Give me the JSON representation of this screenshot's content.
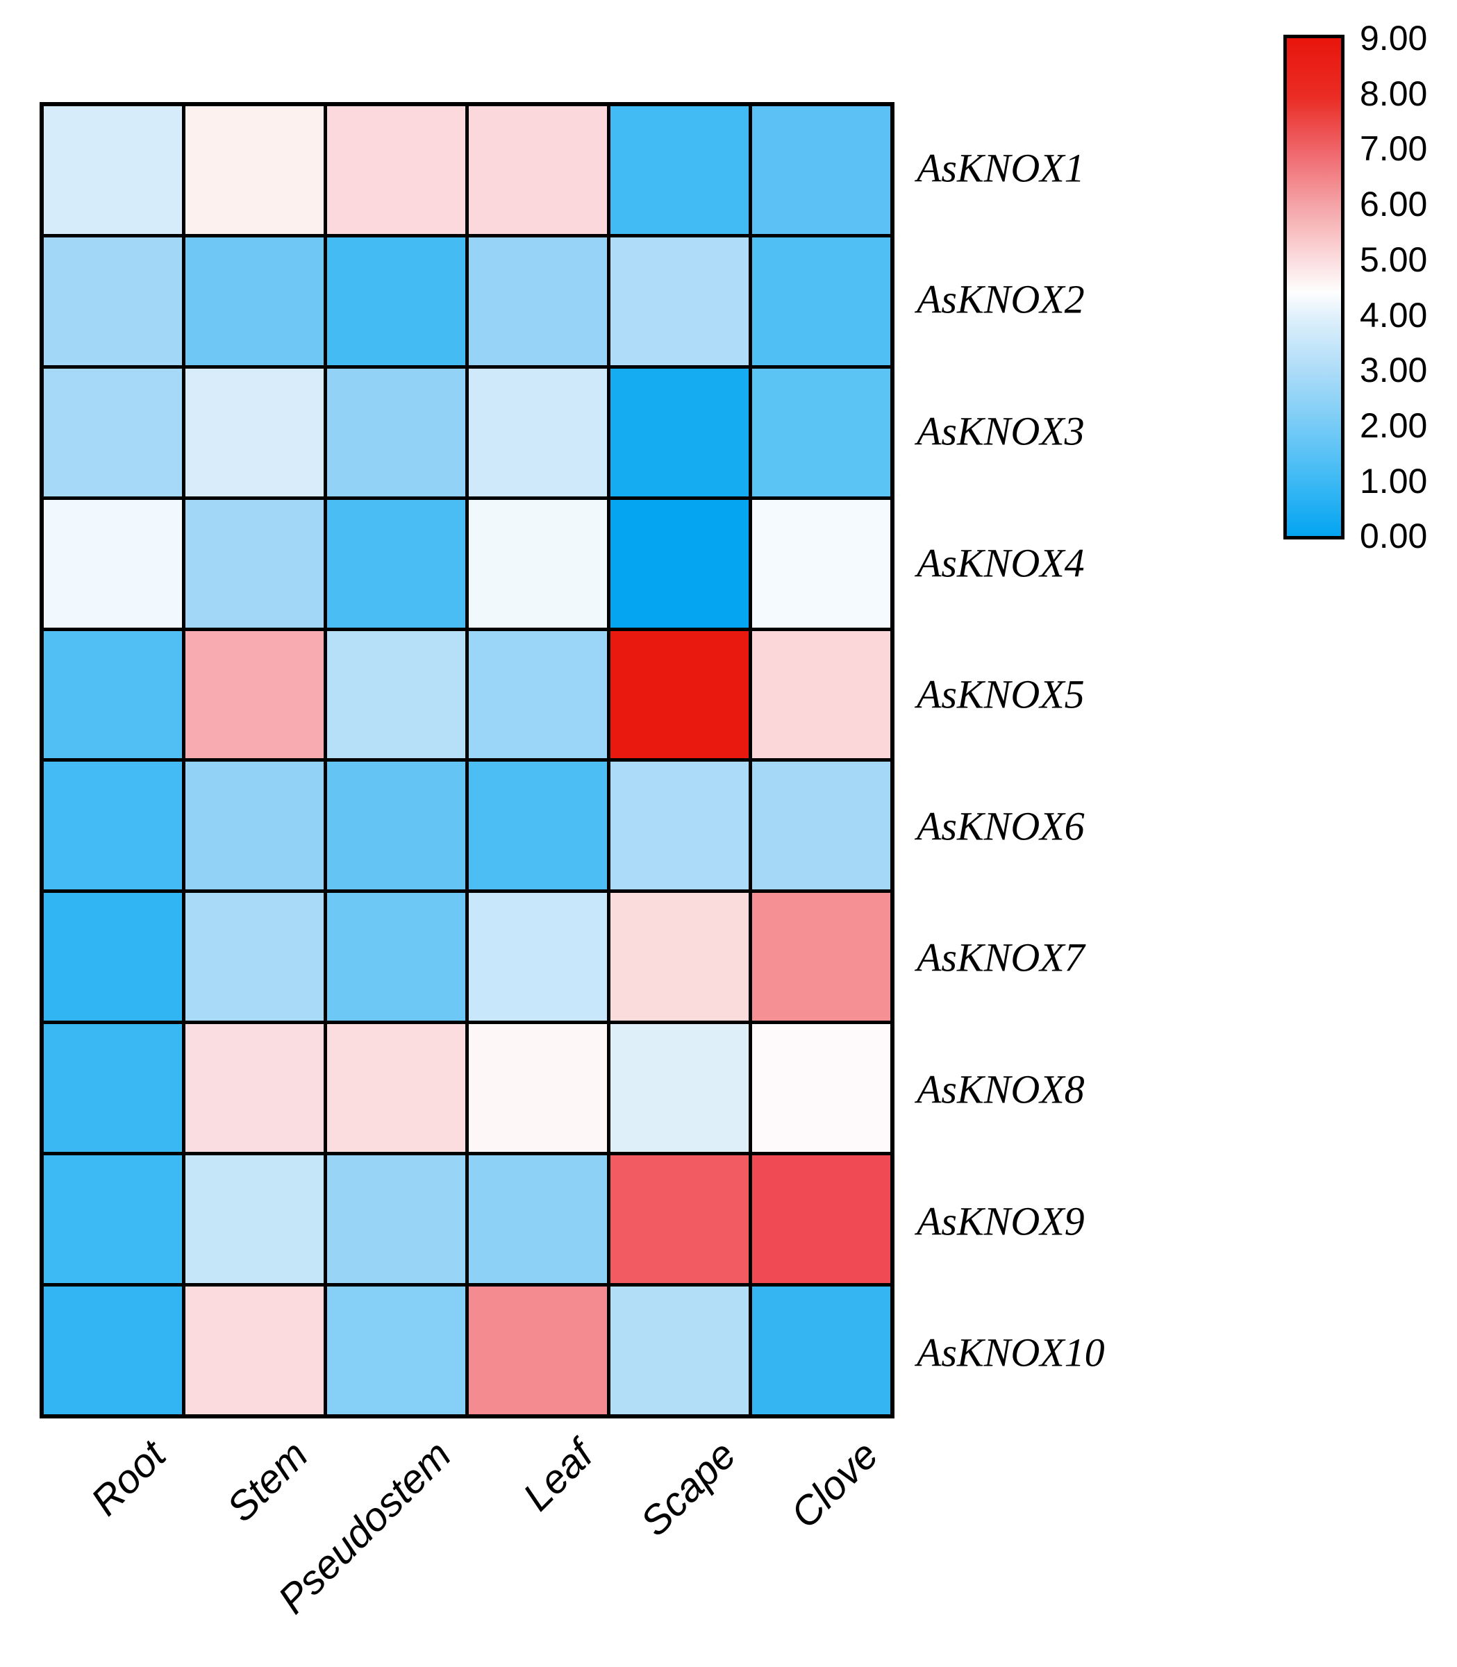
{
  "figure": {
    "background": "#ffffff",
    "border_color": "#000000"
  },
  "chart_data": {
    "type": "heatmap",
    "title": "",
    "xlabel": "",
    "ylabel": "",
    "grid_border": "on",
    "legend_position": "right-colorbar",
    "x_categories": [
      "Root",
      "Stem",
      "Pseudostem",
      "Leaf",
      "Scape",
      "Clove"
    ],
    "y_categories": [
      "AsKNOX1",
      "AsKNOX2",
      "AsKNOX3",
      "AsKNOX4",
      "AsKNOX5",
      "AsKNOX6",
      "AsKNOX7",
      "AsKNOX8",
      "AsKNOX9",
      "AsKNOX10"
    ],
    "series": [
      {
        "name": "AsKNOX1",
        "values": [
          3.8,
          4.7,
          5.2,
          5.2,
          1.1,
          1.6
        ],
        "colors": [
          "#D7ECFA",
          "#FDF1F0",
          "#FBD9DC",
          "#FBD8DB",
          "#42BAF4",
          "#5CC2F5"
        ]
      },
      {
        "name": "AsKNOX2",
        "values": [
          2.8,
          1.9,
          1.2,
          2.6,
          3.1,
          1.3
        ],
        "colors": [
          "#A3D7F7",
          "#6EC7F5",
          "#45BBF4",
          "#96D3F6",
          "#AFDCF8",
          "#4FBFF4"
        ]
      },
      {
        "name": "AsKNOX3",
        "values": [
          2.9,
          3.8,
          2.5,
          3.6,
          0.3,
          1.6
        ],
        "colors": [
          "#A6D9F7",
          "#D8ECFA",
          "#92D2F6",
          "#CFE9FA",
          "#16ACF1",
          "#5CC3F5"
        ]
      },
      {
        "name": "AsKNOX4",
        "values": [
          4.3,
          2.8,
          1.2,
          4.3,
          0.0,
          4.3
        ],
        "colors": [
          "#F2F9FE",
          "#A2D7F7",
          "#49BDF4",
          "#F2F9FD",
          "#05A5F1",
          "#F4FAFE"
        ]
      },
      {
        "name": "AsKNOX5",
        "values": [
          1.4,
          6.2,
          3.2,
          2.7,
          9.0,
          5.3
        ],
        "colors": [
          "#51BFF4",
          "#F8ACB2",
          "#B6E0F8",
          "#9BD5F7",
          "#E9190F",
          "#FBD7DA"
        ]
      },
      {
        "name": "AsKNOX6",
        "values": [
          1.1,
          2.5,
          1.7,
          1.3,
          3.0,
          2.9
        ],
        "colors": [
          "#44BBF4",
          "#91D2F6",
          "#64C5F5",
          "#4DBEF4",
          "#ABDBF8",
          "#A5D8F7"
        ]
      },
      {
        "name": "AsKNOX7",
        "values": [
          0.8,
          3.0,
          1.9,
          3.5,
          5.2,
          6.7
        ],
        "colors": [
          "#32B5F3",
          "#A9DAF7",
          "#6DC8F5",
          "#C9E7FA",
          "#FBDCDD",
          "#F59095"
        ]
      },
      {
        "name": "AsKNOX8",
        "values": [
          1.0,
          5.2,
          5.2,
          4.6,
          3.9,
          4.5
        ],
        "colors": [
          "#3AB8F3",
          "#FADDE1",
          "#FBDCDF",
          "#FDF8F7",
          "#DEEFF9",
          "#FEFAFB"
        ]
      },
      {
        "name": "AsKNOX9",
        "values": [
          1.0,
          3.5,
          2.6,
          2.4,
          7.7,
          8.1
        ],
        "colors": [
          "#3DB9F3",
          "#C5E5F9",
          "#97D4F6",
          "#8DD1F6",
          "#F15B61",
          "#F04B54"
        ]
      },
      {
        "name": "AsKNOX10",
        "values": [
          0.8,
          5.2,
          2.3,
          6.8,
          3.1,
          0.9
        ],
        "colors": [
          "#33B5F3",
          "#FBDBDE",
          "#86CFF6",
          "#F48B90",
          "#B2DEF8",
          "#35B6F3"
        ]
      }
    ],
    "colorbar": {
      "min": 0.0,
      "max": 9.0,
      "tick_labels": [
        "9.00",
        "8.00",
        "7.00",
        "6.00",
        "5.00",
        "4.00",
        "3.00",
        "2.00",
        "1.00",
        "0.00"
      ],
      "color_low": "#04A4F1",
      "color_mid": "#FFFFFF",
      "color_high": "#E8150C",
      "gradient_stops": [
        {
          "pos": 0,
          "color": "#04A4F1"
        },
        {
          "pos": 11,
          "color": "#3DB9F4"
        },
        {
          "pos": 22,
          "color": "#76CBF6"
        },
        {
          "pos": 33,
          "color": "#ACDCF8"
        },
        {
          "pos": 44,
          "color": "#DFF0FB"
        },
        {
          "pos": 49,
          "color": "#FEFEFE"
        },
        {
          "pos": 56,
          "color": "#FBDADC"
        },
        {
          "pos": 66,
          "color": "#F5A6A9"
        },
        {
          "pos": 77,
          "color": "#EF686D"
        },
        {
          "pos": 88,
          "color": "#EA2D25"
        },
        {
          "pos": 100,
          "color": "#E8150C"
        }
      ]
    }
  }
}
